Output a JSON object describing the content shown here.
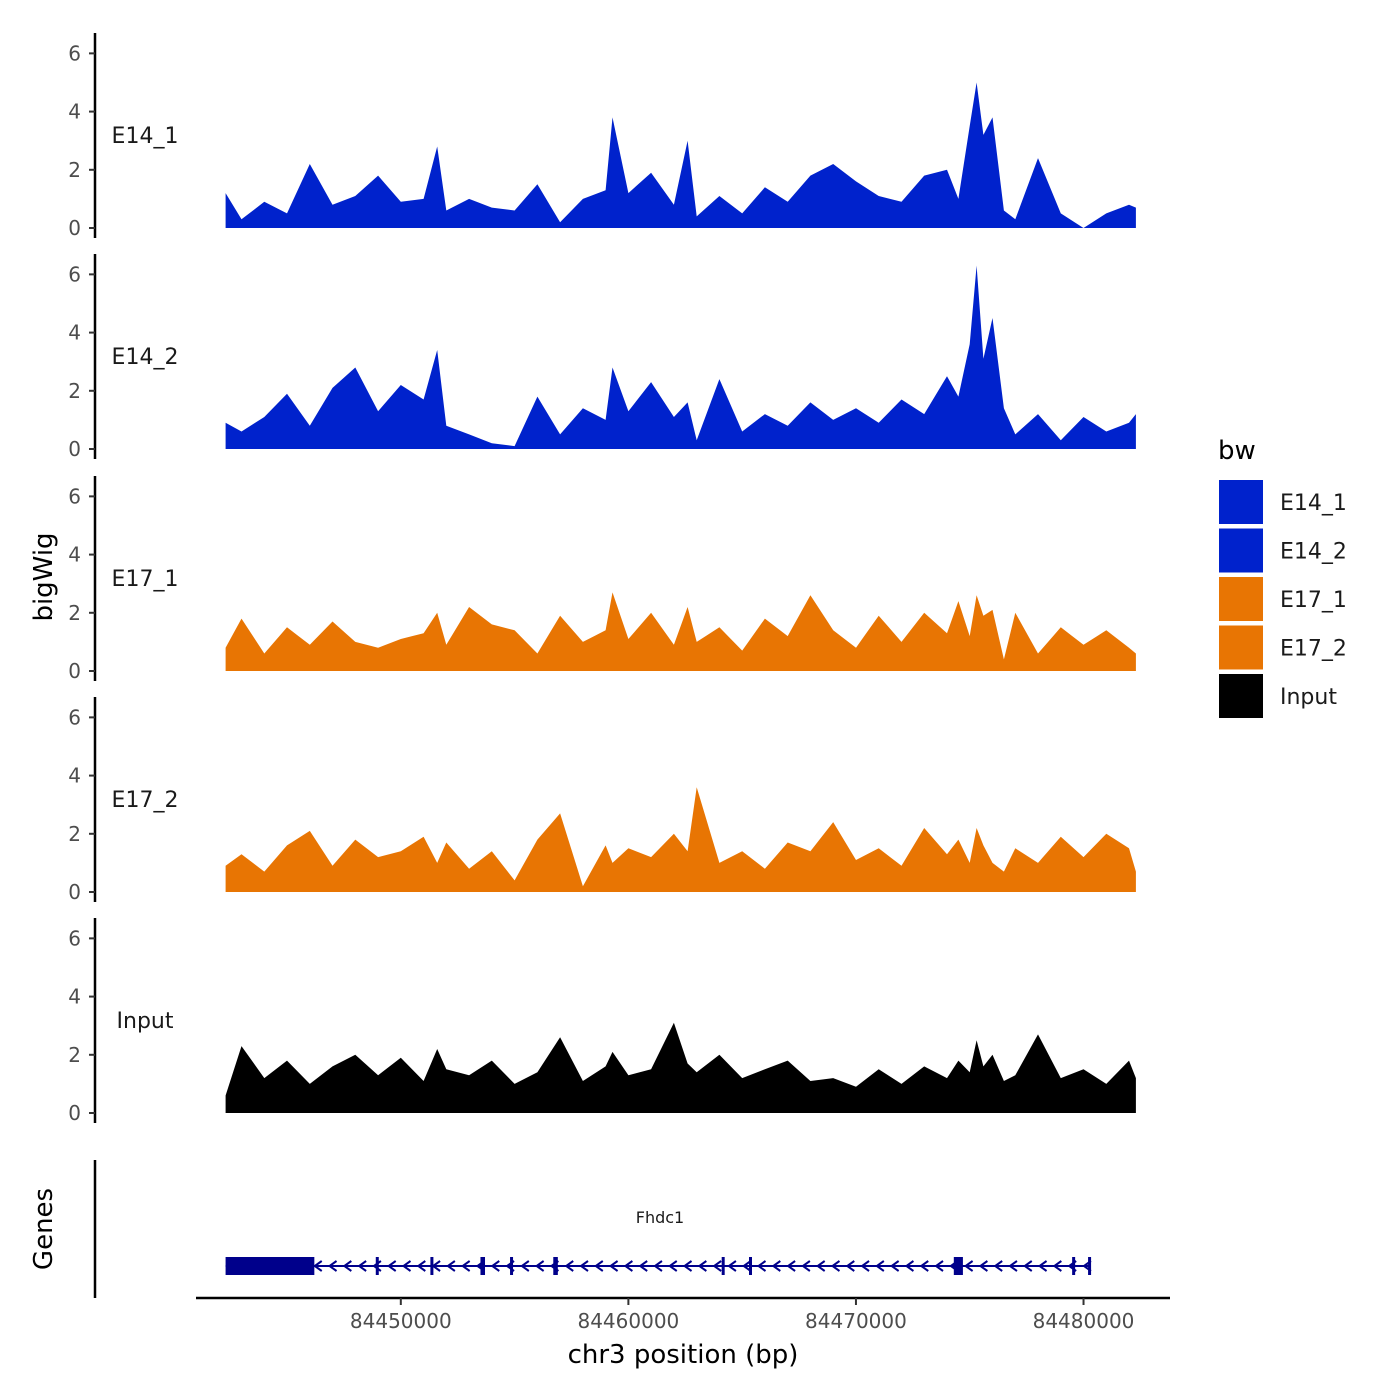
{
  "chart_data": {
    "type": "area",
    "title": "",
    "xlabel": "chr3 position (bp)",
    "ylabel_tracks": "bigWig",
    "ylabel_genes": "Genes",
    "xlim": [
      84442300,
      84482300
    ],
    "x_ticks": [
      84450000,
      84460000,
      84470000,
      84480000
    ],
    "x_tick_labels": [
      "84450000",
      "84460000",
      "84470000",
      "84480000"
    ],
    "ylim": [
      0,
      6.5
    ],
    "y_ticks": [
      0,
      2,
      4,
      6
    ],
    "y_tick_labels": [
      "0",
      "2",
      "4",
      "6"
    ],
    "series": [
      {
        "name": "E14_1",
        "color": "#0022CC",
        "x": [
          84442300,
          84443000,
          84444000,
          84445000,
          84446000,
          84447000,
          84448000,
          84449000,
          84450000,
          84451000,
          84451600,
          84452000,
          84453000,
          84454000,
          84455000,
          84456000,
          84457000,
          84458000,
          84459000,
          84459300,
          84460000,
          84461000,
          84462000,
          84462600,
          84463000,
          84464000,
          84465000,
          84466000,
          84467000,
          84468000,
          84469000,
          84470000,
          84471000,
          84472000,
          84473000,
          84474000,
          84474500,
          84475000,
          84475300,
          84475600,
          84476000,
          84476500,
          84477000,
          84478000,
          84479000,
          84480000,
          84481000,
          84482000,
          84482300
        ],
        "values": [
          1.2,
          0.3,
          0.9,
          0.5,
          2.2,
          0.8,
          1.1,
          1.8,
          0.9,
          1.0,
          2.8,
          0.6,
          1.0,
          0.7,
          0.6,
          1.5,
          0.2,
          1.0,
          1.3,
          3.8,
          1.2,
          1.9,
          0.8,
          3.0,
          0.4,
          1.1,
          0.5,
          1.4,
          0.9,
          1.8,
          2.2,
          1.6,
          1.1,
          0.9,
          1.8,
          2.0,
          1.0,
          3.5,
          5.0,
          3.2,
          3.8,
          0.6,
          0.3,
          2.4,
          0.5,
          0.0,
          0.5,
          0.8,
          0.7
        ]
      },
      {
        "name": "E14_2",
        "color": "#0022CC",
        "x": [
          84442300,
          84443000,
          84444000,
          84445000,
          84446000,
          84447000,
          84448000,
          84449000,
          84450000,
          84451000,
          84451600,
          84452000,
          84453000,
          84454000,
          84455000,
          84456000,
          84457000,
          84458000,
          84459000,
          84459300,
          84460000,
          84461000,
          84462000,
          84462600,
          84463000,
          84464000,
          84465000,
          84466000,
          84467000,
          84468000,
          84469000,
          84470000,
          84471000,
          84472000,
          84473000,
          84474000,
          84474500,
          84475000,
          84475300,
          84475600,
          84476000,
          84476500,
          84477000,
          84478000,
          84479000,
          84480000,
          84481000,
          84482000,
          84482300
        ],
        "values": [
          0.9,
          0.6,
          1.1,
          1.9,
          0.8,
          2.1,
          2.8,
          1.3,
          2.2,
          1.7,
          3.4,
          0.8,
          0.5,
          0.2,
          0.1,
          1.8,
          0.5,
          1.4,
          1.0,
          2.8,
          1.3,
          2.3,
          1.1,
          1.6,
          0.3,
          2.4,
          0.6,
          1.2,
          0.8,
          1.6,
          1.0,
          1.4,
          0.9,
          1.7,
          1.2,
          2.5,
          1.8,
          3.6,
          6.3,
          3.1,
          4.5,
          1.4,
          0.5,
          1.2,
          0.3,
          1.1,
          0.6,
          0.9,
          1.2
        ]
      },
      {
        "name": "E17_1",
        "color": "#E87503",
        "x": [
          84442300,
          84443000,
          84444000,
          84445000,
          84446000,
          84447000,
          84448000,
          84449000,
          84450000,
          84451000,
          84451600,
          84452000,
          84453000,
          84454000,
          84455000,
          84456000,
          84457000,
          84458000,
          84459000,
          84459300,
          84460000,
          84461000,
          84462000,
          84462600,
          84463000,
          84464000,
          84465000,
          84466000,
          84467000,
          84468000,
          84469000,
          84470000,
          84471000,
          84472000,
          84473000,
          84474000,
          84474500,
          84475000,
          84475300,
          84475600,
          84476000,
          84476500,
          84477000,
          84478000,
          84479000,
          84480000,
          84481000,
          84482000,
          84482300
        ],
        "values": [
          0.8,
          1.8,
          0.6,
          1.5,
          0.9,
          1.7,
          1.0,
          0.8,
          1.1,
          1.3,
          2.0,
          0.9,
          2.2,
          1.6,
          1.4,
          0.6,
          1.9,
          1.0,
          1.4,
          2.7,
          1.1,
          2.0,
          0.9,
          2.2,
          1.0,
          1.5,
          0.7,
          1.8,
          1.2,
          2.6,
          1.4,
          0.8,
          1.9,
          1.0,
          2.0,
          1.3,
          2.4,
          1.2,
          2.6,
          1.9,
          2.1,
          0.4,
          2.0,
          0.6,
          1.5,
          0.9,
          1.4,
          0.8,
          0.6
        ]
      },
      {
        "name": "E17_2",
        "color": "#E87503",
        "x": [
          84442300,
          84443000,
          84444000,
          84445000,
          84446000,
          84447000,
          84448000,
          84449000,
          84450000,
          84451000,
          84451600,
          84452000,
          84453000,
          84454000,
          84455000,
          84456000,
          84457000,
          84458000,
          84459000,
          84459300,
          84460000,
          84461000,
          84462000,
          84462600,
          84463000,
          84464000,
          84465000,
          84466000,
          84467000,
          84468000,
          84469000,
          84470000,
          84471000,
          84472000,
          84473000,
          84474000,
          84474500,
          84475000,
          84475300,
          84475600,
          84476000,
          84476500,
          84477000,
          84478000,
          84479000,
          84480000,
          84481000,
          84482000,
          84482300
        ],
        "values": [
          0.9,
          1.3,
          0.7,
          1.6,
          2.1,
          0.9,
          1.8,
          1.2,
          1.4,
          1.9,
          1.0,
          1.7,
          0.8,
          1.4,
          0.4,
          1.8,
          2.7,
          0.2,
          1.6,
          1.0,
          1.5,
          1.2,
          2.0,
          1.4,
          3.6,
          1.0,
          1.4,
          0.8,
          1.7,
          1.4,
          2.4,
          1.1,
          1.5,
          0.9,
          2.2,
          1.3,
          1.8,
          1.0,
          2.2,
          1.6,
          1.0,
          0.7,
          1.5,
          1.0,
          1.9,
          1.2,
          2.0,
          1.5,
          0.7
        ]
      },
      {
        "name": "Input",
        "color": "#000000",
        "x": [
          84442300,
          84443000,
          84444000,
          84445000,
          84446000,
          84447000,
          84448000,
          84449000,
          84450000,
          84451000,
          84451600,
          84452000,
          84453000,
          84454000,
          84455000,
          84456000,
          84457000,
          84458000,
          84459000,
          84459300,
          84460000,
          84461000,
          84462000,
          84462600,
          84463000,
          84464000,
          84465000,
          84466000,
          84467000,
          84468000,
          84469000,
          84470000,
          84471000,
          84472000,
          84473000,
          84474000,
          84474500,
          84475000,
          84475300,
          84475600,
          84476000,
          84476500,
          84477000,
          84478000,
          84479000,
          84480000,
          84481000,
          84482000,
          84482300
        ],
        "values": [
          0.6,
          2.3,
          1.2,
          1.8,
          1.0,
          1.6,
          2.0,
          1.3,
          1.9,
          1.1,
          2.2,
          1.5,
          1.3,
          1.8,
          1.0,
          1.4,
          2.6,
          1.1,
          1.6,
          2.1,
          1.3,
          1.5,
          3.1,
          1.7,
          1.4,
          2.0,
          1.2,
          1.5,
          1.8,
          1.1,
          1.2,
          0.9,
          1.5,
          1.0,
          1.6,
          1.2,
          1.8,
          1.4,
          2.5,
          1.6,
          2.0,
          1.1,
          1.3,
          2.7,
          1.2,
          1.5,
          1.0,
          1.8,
          1.2
        ]
      }
    ],
    "legend": {
      "title": "bw",
      "position": "right",
      "entries": [
        {
          "label": "E14_1",
          "color": "#0022CC"
        },
        {
          "label": "E14_2",
          "color": "#0022CC"
        },
        {
          "label": "E17_1",
          "color": "#E87503"
        },
        {
          "label": "E17_2",
          "color": "#E87503"
        },
        {
          "label": "Input",
          "color": "#000000"
        }
      ]
    },
    "gene": {
      "name": "Fhdc1",
      "color": "#00008B",
      "strand": "-",
      "start": 84442300,
      "end": 84480300,
      "exons": [
        {
          "start": 84442300,
          "end": 84446200,
          "type": "utr"
        },
        {
          "start": 84448900,
          "end": 84449000,
          "type": "cds"
        },
        {
          "start": 84451300,
          "end": 84451400,
          "type": "cds"
        },
        {
          "start": 84453500,
          "end": 84453700,
          "type": "cds"
        },
        {
          "start": 84454800,
          "end": 84454900,
          "type": "cds"
        },
        {
          "start": 84456700,
          "end": 84456900,
          "type": "cds"
        },
        {
          "start": 84464100,
          "end": 84464200,
          "type": "cds"
        },
        {
          "start": 84465300,
          "end": 84465400,
          "type": "cds"
        },
        {
          "start": 84474300,
          "end": 84474700,
          "type": "cds"
        },
        {
          "start": 84479500,
          "end": 84479600,
          "type": "cds"
        },
        {
          "start": 84480200,
          "end": 84480300,
          "type": "cds"
        }
      ]
    }
  }
}
